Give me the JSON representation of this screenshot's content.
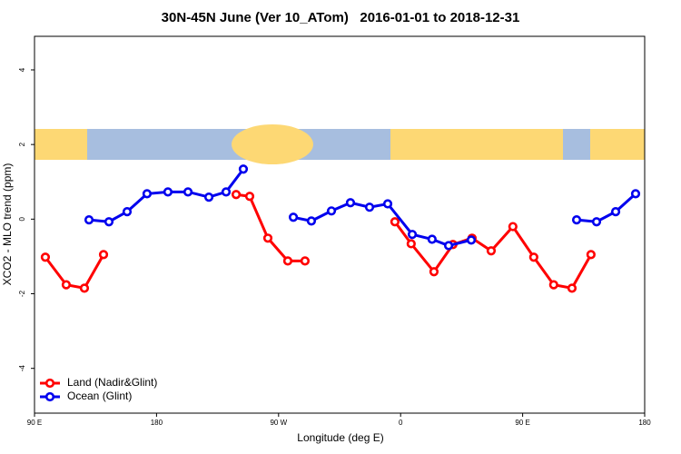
{
  "chart_data": {
    "type": "line",
    "title": "30N-45N June (Ver 10_ATom)   2016-01-01 to 2018-12-31",
    "x_label": "Longitude (deg E)",
    "y_label": "XCO2 - MLO trend (ppm)",
    "xlim": [
      90,
      540
    ],
    "xticks": [
      {
        "value": 90,
        "label": "90 E"
      },
      {
        "value": 180,
        "label": "180"
      },
      {
        "value": 270,
        "label": "90 W"
      },
      {
        "value": 360,
        "label": "0"
      },
      {
        "value": 450,
        "label": "90 E"
      },
      {
        "value": 540,
        "label": "180"
      }
    ],
    "ylim": [
      -5.2,
      4.9
    ],
    "yticks": [
      -4,
      -2,
      0,
      2,
      4
    ],
    "legend": "bottom-left",
    "series": [
      {
        "name": "Land (Nadir&Glint)",
        "color": "#ff0000",
        "x": [
          98,
          113.4,
          126.8,
          140.9,
          null,
          238.7,
          248.7,
          262.1,
          276.8,
          289.5,
          null,
          355.8,
          367.8,
          384.6,
          398.6,
          412.7,
          426.8,
          442.8,
          458.2,
          472.9,
          486.4,
          500.4
        ],
        "values": [
          -1.02,
          -1.76,
          -1.85,
          -0.95,
          null,
          0.66,
          0.61,
          -0.51,
          -1.12,
          -1.12,
          null,
          -0.07,
          -0.66,
          -1.41,
          -0.68,
          -0.51,
          -0.85,
          -0.2,
          -1.02,
          -1.76,
          -1.85,
          -0.95
        ]
      },
      {
        "name": "Ocean (Glint)",
        "color": "#0000ee",
        "x": [
          130.2,
          144.9,
          158.3,
          173,
          188.4,
          203.2,
          218.6,
          231.3,
          244,
          null,
          280.9,
          294.2,
          309,
          323,
          337.1,
          350.5,
          368.6,
          383.2,
          395.4,
          412.1,
          null,
          489.8,
          504.5,
          518.6,
          533.3
        ],
        "values": [
          -0.02,
          -0.07,
          0.2,
          0.68,
          0.73,
          0.73,
          0.59,
          0.73,
          1.34,
          null,
          0.05,
          -0.05,
          0.22,
          0.44,
          0.32,
          0.41,
          -0.41,
          -0.54,
          -0.71,
          -0.56,
          null,
          -0.02,
          -0.07,
          0.2,
          0.68
        ]
      }
    ]
  }
}
